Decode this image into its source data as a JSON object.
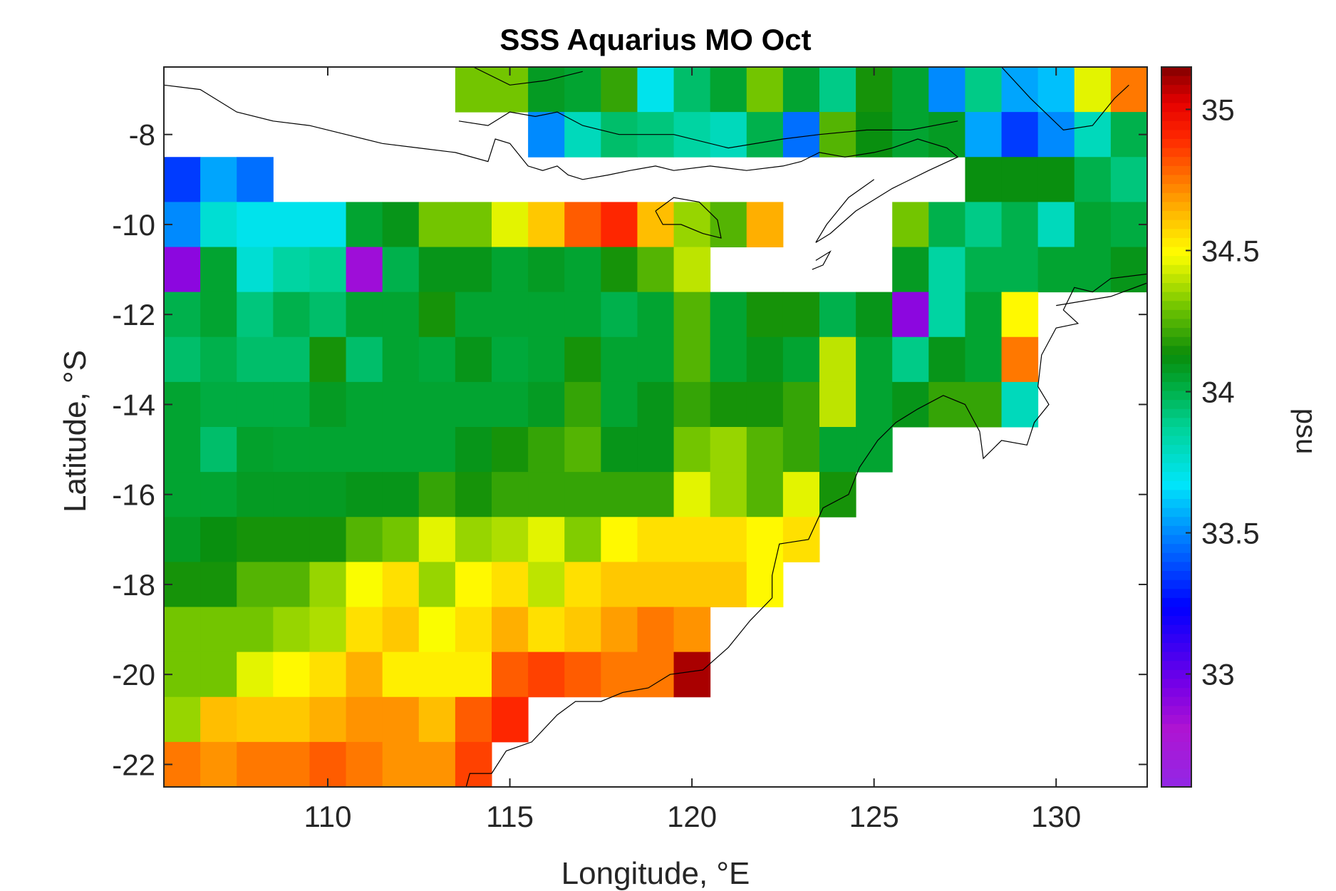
{
  "chart_data": {
    "type": "heatmap",
    "title": "SSS Aquarius MO Oct",
    "xlabel": "Longitude, °E",
    "ylabel": "Latitude, °S",
    "colorbar_label": "psu",
    "xlim": [
      105.5,
      132.5
    ],
    "ylim": [
      -22.5,
      -6.5
    ],
    "x_ticks": [
      110,
      115,
      120,
      125,
      130
    ],
    "y_ticks": [
      -8,
      -10,
      -12,
      -14,
      -16,
      -18,
      -20,
      -22
    ],
    "clim": [
      32.6,
      35.15
    ],
    "colorbar_ticks": [
      33,
      33.5,
      34,
      34.5,
      35
    ],
    "cell_size_deg": 1,
    "colormap_hint": "jet-like: purple, blue, cyan, green, yellow, orange, red, dark red",
    "land_color": "#ffffff",
    "coastline_color": "#000000",
    "rows_note": "rows listed from north (-7) to south (-22); each row lists 1-degree cells by longitude center from 106 to 132; null = no data",
    "lat_centers": [
      -7,
      -8,
      -9,
      -10,
      -11,
      -12,
      -13,
      -14,
      -15,
      -16,
      -17,
      -18,
      -19,
      -20,
      -21,
      -22
    ],
    "lon_centers": [
      106,
      107,
      108,
      109,
      110,
      111,
      112,
      113,
      114,
      115,
      116,
      117,
      118,
      119,
      120,
      121,
      122,
      123,
      124,
      125,
      126,
      127,
      128,
      129,
      130,
      131,
      132
    ],
    "sss": [
      [
        null,
        null,
        null,
        null,
        null,
        null,
        null,
        null,
        34.3,
        34.3,
        34.08,
        34.05,
        34.2,
        33.7,
        33.95,
        34.05,
        34.3,
        34.05,
        33.9,
        34.15,
        34.05,
        33.5,
        33.9,
        33.55,
        33.6,
        34.45,
        34.75
      ],
      [
        null,
        null,
        null,
        null,
        null,
        null,
        null,
        null,
        null,
        null,
        33.5,
        33.8,
        33.95,
        33.92,
        33.85,
        33.8,
        34.0,
        33.45,
        34.25,
        34.12,
        34.05,
        34.08,
        33.55,
        33.35,
        33.5,
        33.8,
        34.0
      ],
      [
        33.35,
        33.55,
        33.45,
        null,
        null,
        null,
        null,
        null,
        null,
        null,
        null,
        null,
        null,
        null,
        null,
        null,
        null,
        null,
        null,
        null,
        null,
        null,
        34.12,
        34.12,
        34.12,
        34.0,
        33.92
      ],
      [
        33.5,
        33.75,
        33.7,
        33.7,
        33.7,
        34.05,
        34.1,
        34.3,
        34.3,
        34.45,
        34.6,
        34.8,
        34.9,
        34.62,
        34.35,
        34.25,
        34.65,
        null,
        null,
        null,
        34.3,
        34.0,
        33.9,
        34.0,
        33.8,
        34.05,
        34.02
      ],
      [
        32.9,
        34.05,
        33.75,
        33.85,
        33.88,
        32.85,
        34.0,
        34.1,
        34.1,
        34.05,
        34.08,
        34.05,
        34.15,
        34.25,
        34.4,
        null,
        null,
        null,
        null,
        null,
        34.08,
        33.85,
        34.0,
        34.0,
        34.05,
        34.05,
        34.1
      ],
      [
        34.0,
        34.05,
        33.92,
        34.0,
        33.95,
        34.05,
        34.05,
        34.15,
        34.05,
        34.05,
        34.05,
        34.05,
        34.0,
        34.05,
        34.25,
        34.05,
        34.15,
        34.15,
        34.0,
        34.1,
        32.9,
        33.85,
        34.05,
        34.5,
        null,
        null,
        null
      ],
      [
        33.95,
        34.0,
        33.95,
        33.95,
        34.15,
        33.95,
        34.05,
        34.03,
        34.1,
        34.03,
        34.05,
        34.15,
        34.05,
        34.05,
        34.25,
        34.05,
        34.1,
        34.05,
        34.4,
        34.05,
        33.9,
        34.1,
        34.05,
        34.75,
        null,
        null,
        null
      ],
      [
        34.05,
        34.02,
        34.02,
        34.02,
        34.08,
        34.05,
        34.05,
        34.05,
        34.05,
        34.05,
        34.08,
        34.2,
        34.05,
        34.1,
        34.2,
        34.15,
        34.15,
        34.2,
        34.4,
        34.05,
        34.1,
        34.2,
        34.2,
        33.8,
        null,
        null,
        null
      ],
      [
        34.05,
        33.95,
        34.06,
        34.05,
        34.05,
        34.05,
        34.05,
        34.05,
        34.1,
        34.15,
        34.2,
        34.25,
        34.1,
        34.1,
        34.3,
        34.35,
        34.25,
        34.2,
        34.05,
        34.05,
        null,
        null,
        null,
        null,
        null,
        null,
        null
      ],
      [
        34.05,
        34.05,
        34.08,
        34.08,
        34.08,
        34.1,
        34.1,
        34.2,
        34.15,
        34.2,
        34.2,
        34.2,
        34.2,
        34.2,
        34.45,
        34.35,
        34.25,
        34.45,
        34.15,
        null,
        null,
        null,
        null,
        null,
        null,
        null,
        null
      ],
      [
        34.08,
        34.12,
        34.15,
        34.15,
        34.15,
        34.25,
        34.3,
        34.45,
        34.35,
        34.38,
        34.45,
        34.32,
        34.5,
        34.55,
        34.55,
        34.55,
        34.5,
        34.55,
        null,
        null,
        null,
        null,
        null,
        null,
        null,
        null,
        null
      ],
      [
        34.15,
        34.15,
        34.25,
        34.25,
        34.35,
        34.48,
        34.55,
        34.35,
        34.5,
        34.55,
        34.4,
        34.55,
        34.6,
        34.6,
        34.6,
        34.6,
        34.5,
        null,
        null,
        null,
        null,
        null,
        null,
        null,
        null,
        null,
        null
      ],
      [
        34.3,
        34.3,
        34.3,
        34.35,
        34.38,
        34.55,
        34.6,
        34.48,
        34.55,
        34.65,
        34.55,
        34.6,
        34.68,
        34.75,
        34.7,
        null,
        null,
        null,
        null,
        null,
        null,
        null,
        null,
        null,
        null,
        null,
        null
      ],
      [
        34.3,
        34.3,
        34.45,
        34.5,
        34.55,
        34.65,
        34.52,
        34.52,
        34.52,
        34.8,
        34.85,
        34.8,
        34.75,
        34.75,
        35.1,
        null,
        null,
        null,
        null,
        null,
        null,
        null,
        null,
        null,
        null,
        null,
        null
      ],
      [
        34.35,
        34.62,
        34.6,
        34.6,
        34.65,
        34.7,
        34.7,
        34.62,
        34.8,
        34.9,
        null,
        null,
        null,
        null,
        null,
        null,
        null,
        null,
        null,
        null,
        null,
        null,
        null,
        null,
        null,
        null,
        null
      ],
      [
        34.75,
        34.7,
        34.75,
        34.75,
        34.8,
        34.75,
        34.7,
        34.7,
        34.85,
        null,
        null,
        null,
        null,
        null,
        null,
        null,
        null,
        null,
        null,
        null,
        null,
        null,
        null,
        null,
        null,
        null,
        null
      ]
    ]
  }
}
